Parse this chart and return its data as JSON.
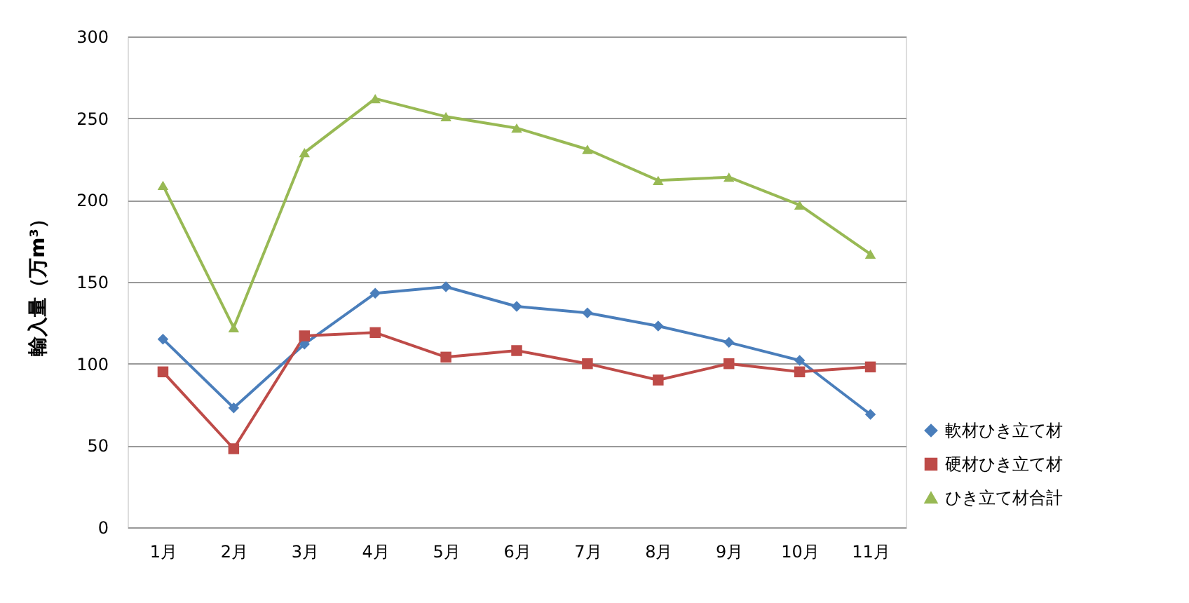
{
  "chart_data": {
    "type": "line",
    "ylabel": "輸入量（万m³）",
    "categories": [
      "1月",
      "2月",
      "3月",
      "4月",
      "5月",
      "6月",
      "7月",
      "8月",
      "9月",
      "10月",
      "11月"
    ],
    "series": [
      {
        "name": "軟材ひき立て材",
        "color": "#4a7ebb",
        "marker": "diamond",
        "values": [
          115,
          73,
          112,
          143,
          147,
          135,
          131,
          123,
          113,
          102,
          69
        ]
      },
      {
        "name": "硬材ひき立て材",
        "color": "#be4b48",
        "marker": "square",
        "values": [
          95,
          48,
          117,
          119,
          104,
          108,
          100,
          90,
          100,
          95,
          98
        ]
      },
      {
        "name": "ひき立て材合計",
        "color": "#98b954",
        "marker": "triangle",
        "values": [
          209,
          122,
          229,
          262,
          251,
          244,
          231,
          212,
          214,
          197,
          167
        ]
      }
    ],
    "ylim": [
      0,
      300
    ],
    "yticks": [
      0,
      50,
      100,
      150,
      200,
      250,
      300
    ],
    "grid": "y",
    "legend": "bottom right",
    "line_style": "solid"
  }
}
